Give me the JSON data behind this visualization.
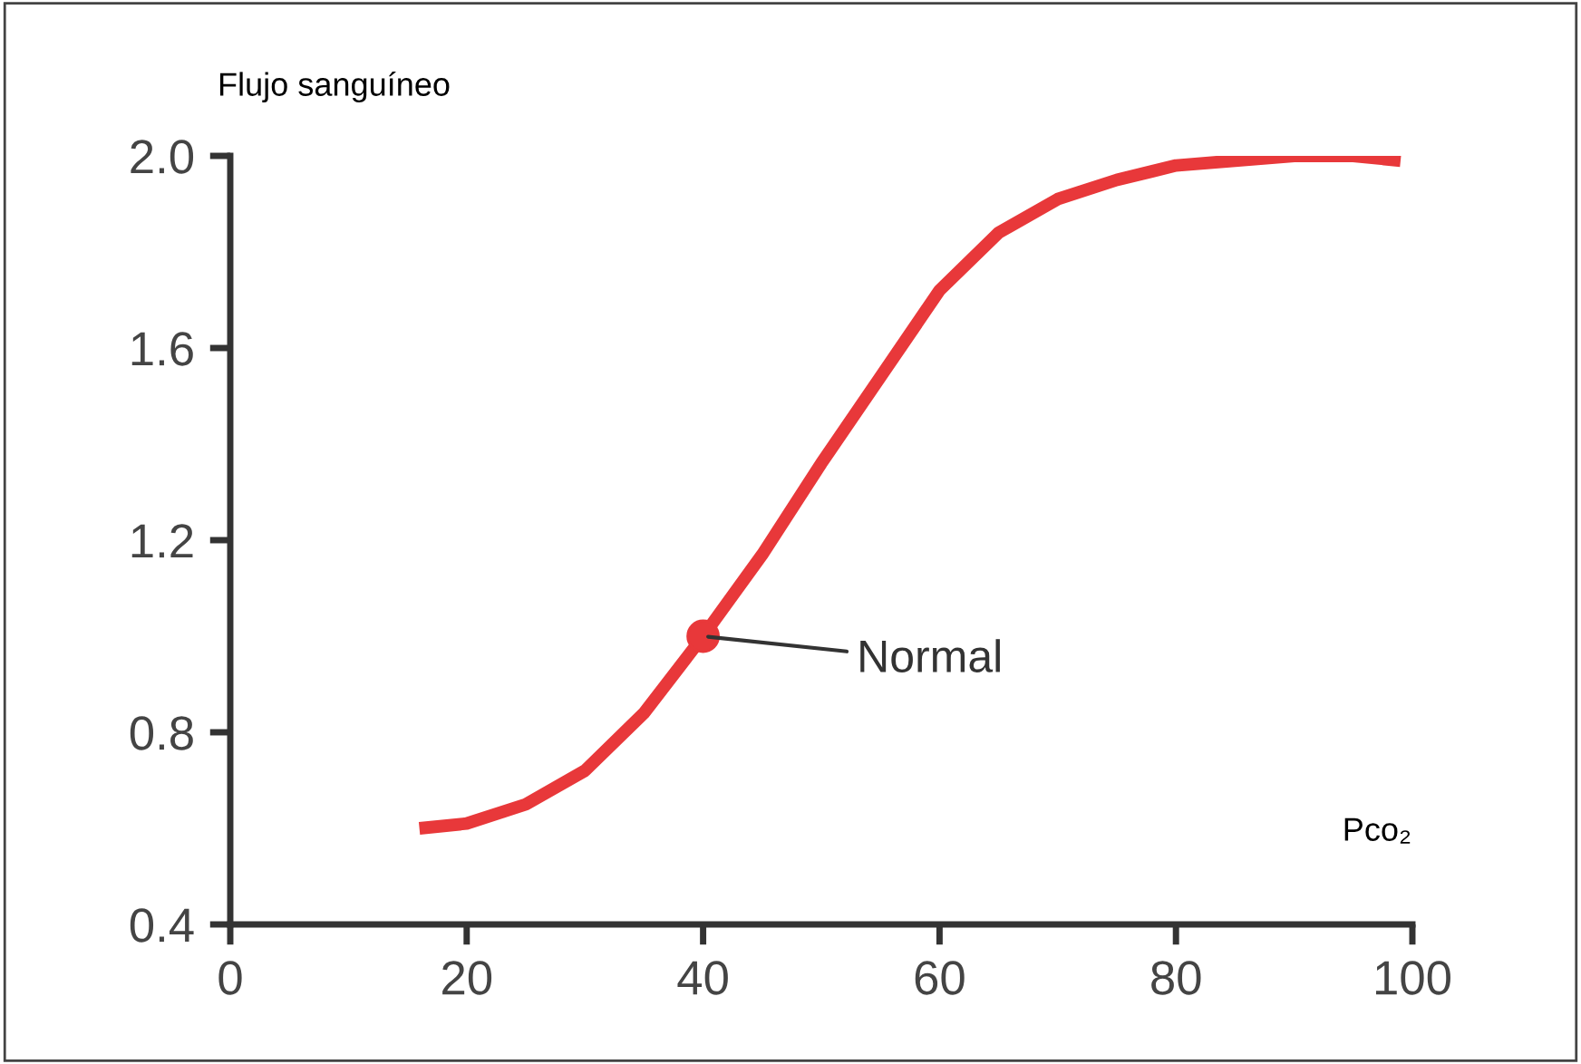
{
  "chart_data": {
    "type": "line",
    "ylabel": "Flujo sanguíneo",
    "xlabel": "Pco₂",
    "xlim": [
      0,
      100
    ],
    "ylim": [
      0.4,
      2.0
    ],
    "xticks": [
      0,
      20,
      40,
      60,
      80,
      100
    ],
    "yticks": [
      {
        "value": 0.4,
        "label": "0.4"
      },
      {
        "value": 0.8,
        "label": "0.8"
      },
      {
        "value": 1.2,
        "label": "1.2"
      },
      {
        "value": 1.6,
        "label": "1.6"
      },
      {
        "value": 2.0,
        "label": "2.0"
      }
    ],
    "grid": false,
    "legend": false,
    "series": [
      {
        "color": "#e8383a",
        "x": [
          16,
          20,
          25,
          30,
          35,
          40,
          45,
          50,
          55,
          60,
          65,
          70,
          75,
          80,
          85,
          90,
          95,
          99
        ],
        "values": [
          0.6,
          0.61,
          0.65,
          0.72,
          0.84,
          1.0,
          1.17,
          1.36,
          1.54,
          1.72,
          1.84,
          1.91,
          1.95,
          1.98,
          1.99,
          2.0,
          2.0,
          1.99
        ]
      },
      {
        "type": "scatter",
        "color": "#e8383a",
        "marker": "circle",
        "x": [
          40
        ],
        "values": [
          1.0
        ]
      }
    ],
    "annotations": [
      {
        "text": "Normal",
        "x": 40,
        "y": 1.0
      }
    ]
  }
}
